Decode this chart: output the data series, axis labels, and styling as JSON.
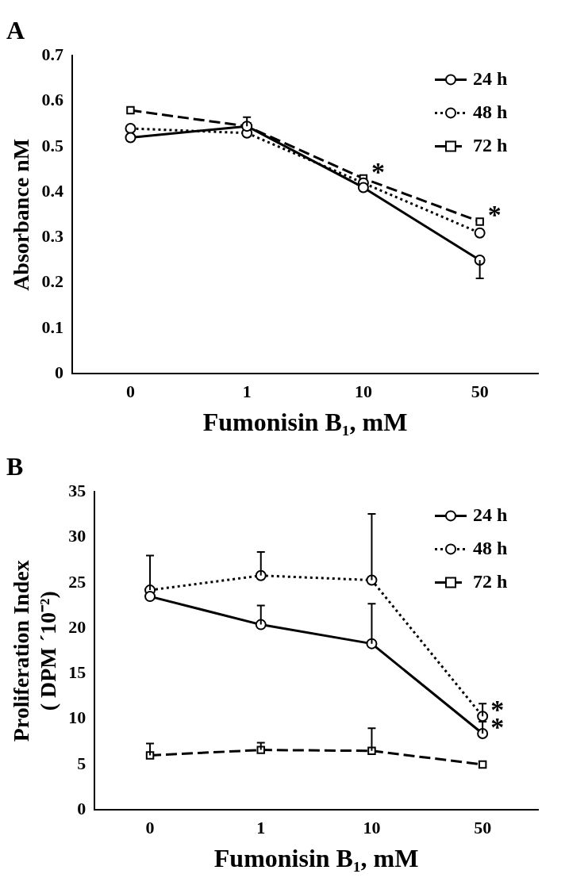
{
  "chart_data": [
    {
      "type": "line",
      "title": "A",
      "xlabel": "Fumonisin B₁, mM",
      "ylabel": "Absorbance nM",
      "categories": [
        "0",
        "1",
        "10",
        "50"
      ],
      "series": [
        {
          "name": "24 h",
          "color": "#000000",
          "values": [
            0.52,
            0.545,
            0.41,
            0.25
          ],
          "errors": [
            null,
            null,
            null,
            [
              0.21,
              0.25
            ]
          ],
          "marker": "circle",
          "line_style": "solid"
        },
        {
          "name": "48 h",
          "color": "#000000",
          "values": [
            0.54,
            0.53,
            0.42,
            0.31
          ],
          "marker": "circle",
          "line_style": "dotted"
        },
        {
          "name": "72 h",
          "color": "#000000",
          "values": [
            0.58,
            0.545,
            0.43,
            0.335
          ],
          "errors": [
            null,
            [
              0.545,
              0.565
            ],
            null,
            null
          ],
          "marker": "square",
          "line_style": "dashed"
        }
      ],
      "ylim": [
        0,
        0.7
      ],
      "yticks": [
        0,
        0.1,
        0.2,
        0.3,
        0.4,
        0.5,
        0.6,
        0.7
      ],
      "legend": "top right",
      "grid": false,
      "annotations": [
        {
          "text": "*",
          "x": "10",
          "y": 0.43
        },
        {
          "text": "*",
          "x": "50",
          "y": 0.335
        }
      ]
    },
    {
      "type": "line",
      "title": "B",
      "xlabel": "Fumonisin B₁, mM",
      "ylabel": "Proliferation Index\n( DPM ´10⁻²)",
      "categories": [
        "0",
        "1",
        "10",
        "50"
      ],
      "series": [
        {
          "name": "24 h",
          "color": "#000000",
          "values": [
            23.5,
            20.4,
            18.3,
            8.4
          ],
          "errors": [
            null,
            [
              20.4,
              22.5
            ],
            [
              18.3,
              22.7
            ],
            [
              8.4,
              9.7
            ]
          ],
          "marker": "circle",
          "line_style": "solid"
        },
        {
          "name": "48 h",
          "color": "#000000",
          "values": [
            24.2,
            25.8,
            25.3,
            10.3
          ],
          "errors": [
            [
              24.2,
              28
            ],
            [
              25.8,
              28.4
            ],
            [
              25.3,
              32.6
            ],
            [
              10.3,
              11.7
            ]
          ],
          "marker": "circle",
          "line_style": "dotted"
        },
        {
          "name": "72 h",
          "color": "#000000",
          "values": [
            6.0,
            6.6,
            6.5,
            5.0
          ],
          "errors": [
            [
              6.0,
              7.3
            ],
            [
              6.6,
              7.4
            ],
            [
              6.5,
              9.0
            ],
            null
          ],
          "marker": "square",
          "line_style": "dashed"
        }
      ],
      "ylim": [
        0,
        35
      ],
      "yticks": [
        0,
        5,
        10,
        15,
        20,
        25,
        30,
        35
      ],
      "legend": "top right",
      "grid": false,
      "annotations": [
        {
          "text": "*",
          "x": "50",
          "y": 10.3
        },
        {
          "text": "*",
          "x": "50",
          "y": 8.4
        }
      ]
    }
  ]
}
